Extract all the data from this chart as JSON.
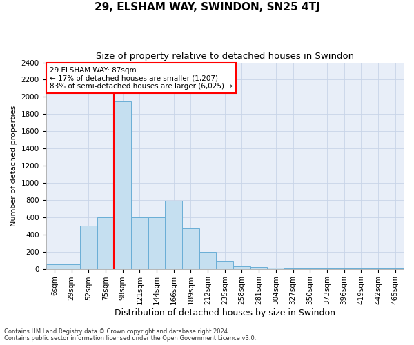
{
  "title": "29, ELSHAM WAY, SWINDON, SN25 4TJ",
  "subtitle": "Size of property relative to detached houses in Swindon",
  "xlabel": "Distribution of detached houses by size in Swindon",
  "ylabel": "Number of detached properties",
  "footnote1": "Contains HM Land Registry data © Crown copyright and database right 2024.",
  "footnote2": "Contains public sector information licensed under the Open Government Licence v3.0.",
  "categories": [
    "6sqm",
    "29sqm",
    "52sqm",
    "75sqm",
    "98sqm",
    "121sqm",
    "144sqm",
    "166sqm",
    "189sqm",
    "212sqm",
    "235sqm",
    "258sqm",
    "281sqm",
    "304sqm",
    "327sqm",
    "350sqm",
    "373sqm",
    "396sqm",
    "419sqm",
    "442sqm",
    "465sqm"
  ],
  "values": [
    50,
    50,
    500,
    600,
    1950,
    600,
    600,
    790,
    470,
    200,
    90,
    30,
    20,
    10,
    5,
    3,
    2,
    2,
    1,
    1,
    1
  ],
  "bar_color": "#c5dff0",
  "bar_edge_color": "#6aaed6",
  "red_line_x": 3.5,
  "annotation_text": "29 ELSHAM WAY: 87sqm\n← 17% of detached houses are smaller (1,207)\n83% of semi-detached houses are larger (6,025) →",
  "annotation_box_color": "white",
  "annotation_box_edge": "red",
  "ylim": [
    0,
    2400
  ],
  "yticks": [
    0,
    200,
    400,
    600,
    800,
    1000,
    1200,
    1400,
    1600,
    1800,
    2000,
    2200,
    2400
  ],
  "grid_color": "#c8d4e8",
  "bg_color": "#e8eef8",
  "title_fontsize": 11,
  "subtitle_fontsize": 9.5,
  "ylabel_fontsize": 8,
  "xlabel_fontsize": 9,
  "tick_fontsize": 7.5,
  "footnote_fontsize": 6
}
